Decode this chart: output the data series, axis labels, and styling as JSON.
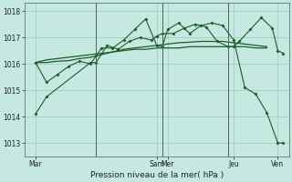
{
  "background_color": "#c5e8e0",
  "grid_color": "#9ec8bb",
  "line_color": "#1a5c2a",
  "xlabel": "Pression niveau de la mer( hPa )",
  "ylim": [
    1012.5,
    1018.3
  ],
  "yticks": [
    1013,
    1014,
    1015,
    1016,
    1017,
    1018
  ],
  "xlim": [
    0,
    48
  ],
  "xtick_positions": [
    2,
    12,
    24,
    26,
    36,
    38,
    46
  ],
  "xtick_labels": [
    "Mar",
    "",
    "Sam",
    "Mer",
    "",
    "Jeu",
    "Ven"
  ],
  "vlines": [
    13,
    25,
    37
  ],
  "series1_x": [
    2,
    4,
    12,
    13,
    15,
    17,
    19,
    21,
    23,
    24,
    25,
    27,
    29,
    31,
    33,
    35,
    37,
    38,
    39,
    41,
    43,
    45,
    46,
    47
  ],
  "series1_y": [
    1014.1,
    1014.75,
    1016.05,
    1016.05,
    1016.7,
    1016.55,
    1016.85,
    1017.0,
    1016.9,
    1017.05,
    1017.15,
    1017.15,
    1017.35,
    1017.5,
    1017.4,
    1016.85,
    1016.65,
    1016.65,
    1016.85,
    1017.3,
    1017.75,
    1017.35,
    1016.5,
    1016.4
  ],
  "series2_x": [
    2,
    4,
    6,
    8,
    10,
    12,
    13,
    14,
    16,
    18,
    20,
    22,
    24,
    25,
    26,
    28,
    30,
    32,
    34,
    36,
    38,
    40,
    42,
    44,
    46,
    47
  ],
  "series2_y": [
    1016.05,
    1015.3,
    1015.6,
    1015.9,
    1016.1,
    1016.0,
    1016.3,
    1016.6,
    1016.6,
    1016.9,
    1017.3,
    1017.7,
    1016.7,
    1016.65,
    1017.3,
    1017.55,
    1017.15,
    1017.45,
    1017.55,
    1017.45,
    1016.9,
    1015.1,
    1014.85,
    1014.15,
    1013.0,
    1013.0
  ],
  "series3_x": [
    2,
    4,
    6,
    8,
    10,
    12,
    14,
    16,
    18,
    20,
    22,
    24,
    26,
    28,
    30,
    32,
    34,
    36,
    38,
    40,
    42,
    44
  ],
  "series3_y": [
    1016.05,
    1016.15,
    1016.2,
    1016.25,
    1016.3,
    1016.35,
    1016.4,
    1016.45,
    1016.5,
    1016.55,
    1016.55,
    1016.6,
    1016.6,
    1016.6,
    1016.65,
    1016.65,
    1016.65,
    1016.65,
    1016.65,
    1016.65,
    1016.6,
    1016.6
  ],
  "series4_x": [
    2,
    4,
    6,
    8,
    10,
    12,
    14,
    16,
    18,
    20,
    22,
    24,
    26,
    28,
    30,
    32,
    34,
    36,
    38,
    40,
    42,
    44
  ],
  "series4_y": [
    1016.05,
    1016.05,
    1016.1,
    1016.12,
    1016.2,
    1016.25,
    1016.35,
    1016.45,
    1016.55,
    1016.6,
    1016.65,
    1016.7,
    1016.75,
    1016.8,
    1016.82,
    1016.85,
    1016.85,
    1016.85,
    1016.8,
    1016.75,
    1016.7,
    1016.65
  ]
}
